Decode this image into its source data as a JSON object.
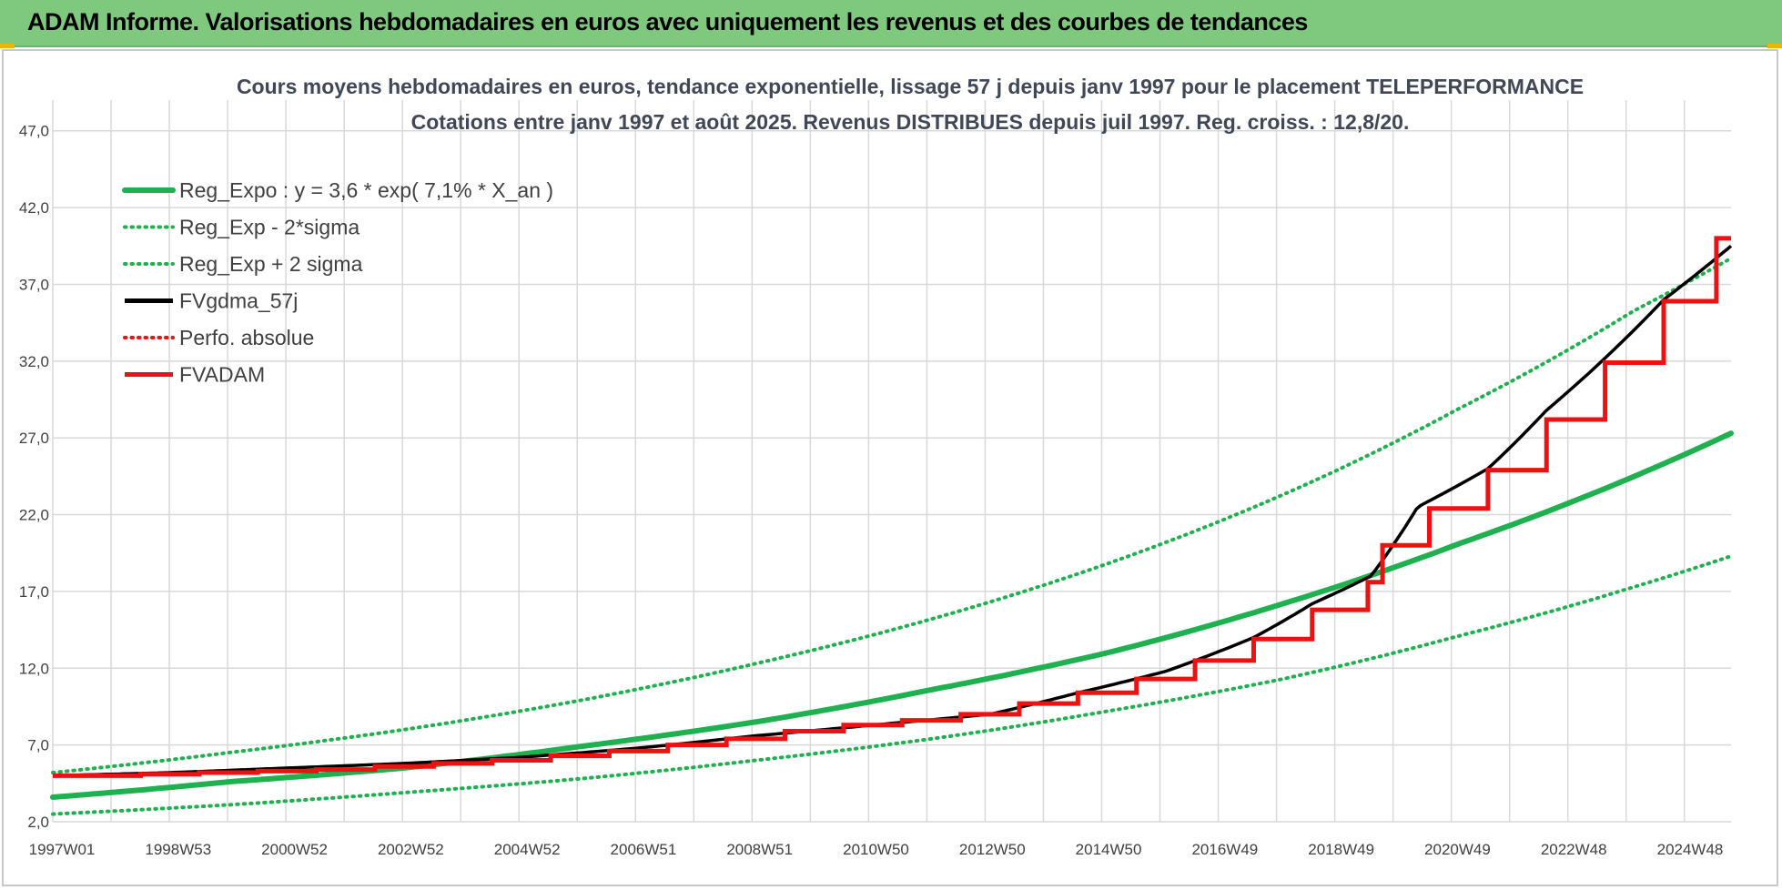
{
  "banner": {
    "title": "ADAM Informe. Valorisations hebdomadaires en euros avec uniquement les revenus et des courbes de tendances"
  },
  "colors": {
    "banner_bg": "#7fc97f",
    "reg_green": "#1fb150",
    "fv_black": "#000000",
    "adam_red": "#ee1111",
    "grid": "#d9d9d9"
  },
  "chart_data": {
    "type": "line",
    "title": "Cours moyens hebdomadaires en euros, tendance exponentielle, lissage 57 j depuis janv 1997 pour le placement TELEPERFORMANCE",
    "subtitle": "Cotations entre janv 1997 et août 2025.  Revenus DISTRIBUES depuis juil 1997.  Reg. croiss. : 12,8/20.",
    "xlabel": "",
    "ylabel": "",
    "x_range": [
      1997.0,
      2025.65
    ],
    "ylim": [
      2.0,
      49.0
    ],
    "y_ticks": [
      "2,0",
      "7,0",
      "12,0",
      "17,0",
      "22,0",
      "27,0",
      "32,0",
      "37,0",
      "42,0",
      "47,0"
    ],
    "x_ticks": [
      "1997W01",
      "1998W53",
      "2000W52",
      "2002W52",
      "2004W52",
      "2006W51",
      "2008W51",
      "2010W50",
      "2012W50",
      "2014W50",
      "2016W49",
      "2018W49",
      "2020W49",
      "2022W48",
      "2024W48"
    ],
    "grid": true,
    "legend_position": "top-left",
    "series": [
      {
        "name": "Reg_Expo : y = 3,6 * exp( 7,1% *  X_an )",
        "style": "solid",
        "color": "#1fb150",
        "x": [
          1997.0,
          2000.0,
          2003.0,
          2006.0,
          2009.0,
          2012.0,
          2015.0,
          2018.0,
          2021.0,
          2024.0,
          2025.65
        ],
        "values": [
          3.6,
          4.6,
          5.5,
          6.9,
          8.5,
          10.6,
          13.0,
          16.2,
          20.1,
          24.5,
          27.3
        ]
      },
      {
        "name": "Reg_Exp - 2*sigma",
        "style": "dotted",
        "color": "#1fb150",
        "x": [
          1997.0,
          2000.0,
          2003.0,
          2006.0,
          2009.0,
          2012.0,
          2015.0,
          2018.0,
          2021.0,
          2024.0,
          2025.65
        ],
        "values": [
          2.5,
          3.1,
          3.9,
          4.8,
          6.0,
          7.4,
          9.2,
          11.3,
          14.1,
          17.3,
          19.3
        ]
      },
      {
        "name": "Reg_Exp + 2 sigma",
        "style": "dotted",
        "color": "#1fb150",
        "x": [
          1997.0,
          2000.0,
          2003.0,
          2006.0,
          2009.0,
          2012.0,
          2015.0,
          2018.0,
          2021.0,
          2024.0,
          2025.65
        ],
        "values": [
          5.2,
          6.5,
          8.0,
          9.9,
          12.3,
          15.2,
          18.8,
          23.3,
          28.9,
          35.3,
          38.7
        ]
      },
      {
        "name": "FVgdma_57j",
        "style": "smooth-steps",
        "color": "#000000",
        "x": [
          1997.0,
          1999.0,
          2001.0,
          2003.0,
          2005.0,
          2007.0,
          2009.0,
          2011.0,
          2013.0,
          2014.5,
          2016.0,
          2017.5,
          2018.5,
          2019.5,
          2020.3,
          2021.5,
          2022.5,
          2023.5,
          2024.5,
          2025.65
        ],
        "values": [
          5.0,
          5.2,
          5.5,
          5.8,
          6.2,
          6.8,
          7.6,
          8.3,
          9.0,
          10.4,
          11.8,
          14.0,
          16.2,
          18.0,
          22.5,
          25.0,
          28.8,
          32.2,
          36.0,
          39.5
        ]
      },
      {
        "name": "Perfo. absolue",
        "style": "dotted",
        "color": "#ee1111",
        "x": [
          1997.0,
          2025.65
        ],
        "values": [
          5.0,
          40.0
        ]
      },
      {
        "name": "FVADAM",
        "style": "steps",
        "color": "#ee1111",
        "x": [
          1997.0,
          1998.5,
          1999.5,
          2000.5,
          2001.5,
          2002.5,
          2003.5,
          2004.5,
          2005.5,
          2006.5,
          2007.5,
          2008.5,
          2009.5,
          2010.5,
          2011.5,
          2012.5,
          2013.5,
          2014.5,
          2015.5,
          2016.5,
          2017.5,
          2018.5,
          2019.45,
          2019.7,
          2020.5,
          2021.5,
          2022.5,
          2023.5,
          2024.5,
          2025.4,
          2025.65
        ],
        "values": [
          5.0,
          5.1,
          5.2,
          5.3,
          5.4,
          5.6,
          5.8,
          6.0,
          6.3,
          6.6,
          7.0,
          7.4,
          7.9,
          8.3,
          8.6,
          9.0,
          9.7,
          10.4,
          11.3,
          12.5,
          13.9,
          15.8,
          17.6,
          20.0,
          22.4,
          24.9,
          28.2,
          31.9,
          35.9,
          40.0,
          40.0
        ]
      }
    ]
  }
}
